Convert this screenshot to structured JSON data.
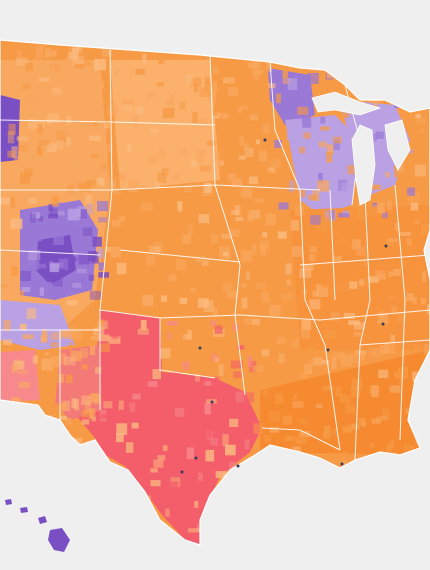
{
  "map": {
    "palette": {
      "background": "#efefef",
      "ocean_land_edge": "#ffffff",
      "red_dominant": "#f45e6a",
      "red_light": "#f7888c",
      "orange_dominant": "#f79a45",
      "orange_mid": "#f9a860",
      "orange_light": "#fbbb80",
      "purple_dominant": "#7b4fc4",
      "purple_mid": "#9a78d6",
      "purple_light": "#b9a1e4",
      "state_border": "#ffffff",
      "marker": "#3c3c5a"
    },
    "legend_visible": false,
    "regions_shown": [
      "contiguous-us",
      "hawaii"
    ]
  }
}
